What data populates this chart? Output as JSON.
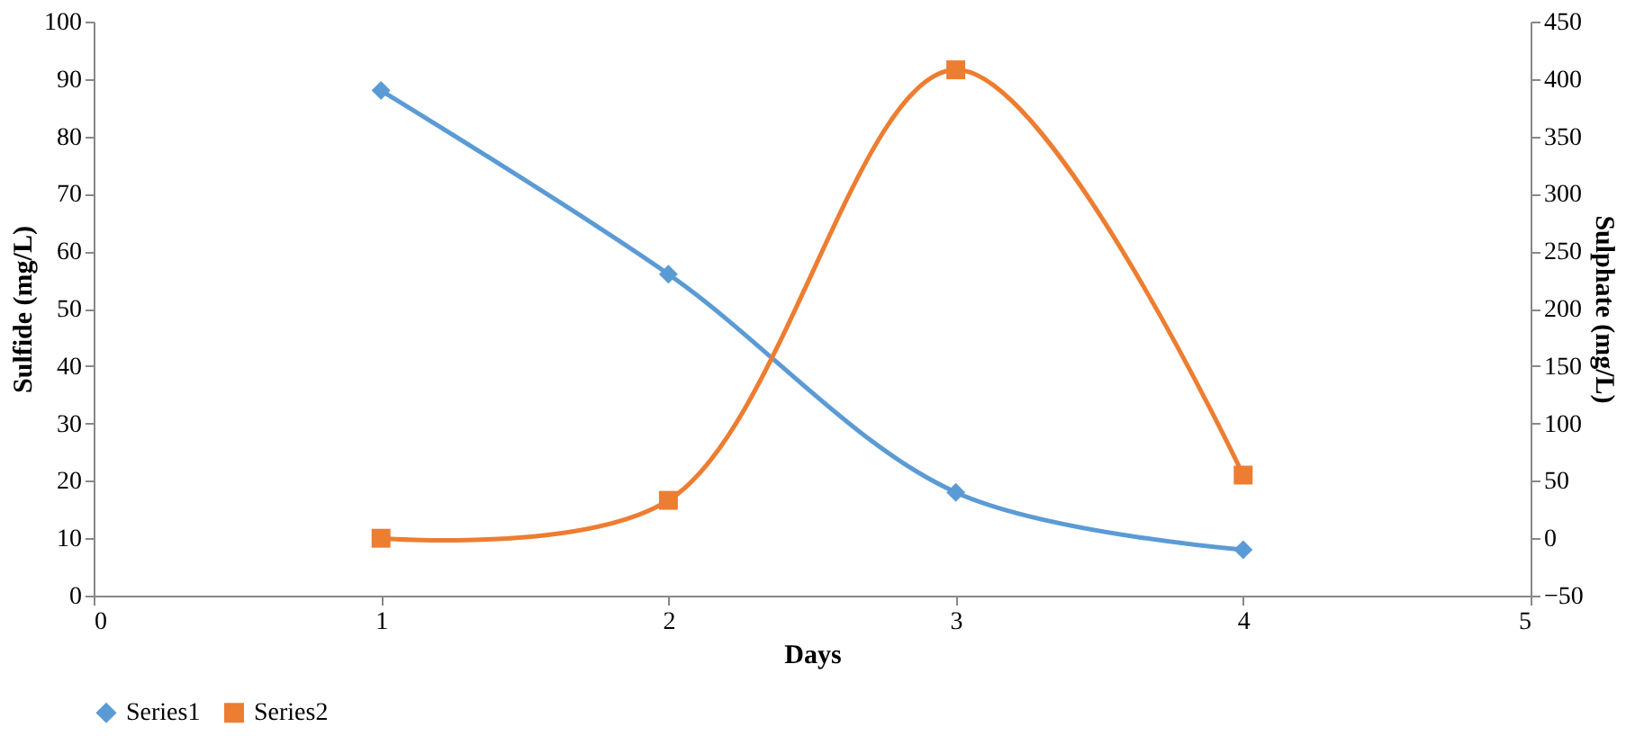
{
  "chart_data": {
    "type": "line",
    "xlabel": "Days",
    "ylabel": "Sulfide (mg/L)",
    "y2label": "Sulphate (mg/L)",
    "x": [
      1,
      2,
      3,
      4
    ],
    "series": [
      {
        "name": "Series1",
        "color": "#5b9bd5",
        "values": [
          88,
          56,
          18,
          8
        ],
        "marker": "diamond"
      },
      {
        "name": "Series2",
        "color": "#ed7d31",
        "values": [
          0,
          33,
          408,
          55
        ],
        "axis": "y2",
        "marker": "square"
      }
    ],
    "xlim": [
      0,
      5
    ],
    "xticks": [
      0,
      1,
      2,
      3,
      4,
      5
    ],
    "ylim": [
      0,
      100
    ],
    "yticks": [
      0,
      10,
      20,
      30,
      40,
      50,
      60,
      70,
      80,
      90,
      100
    ],
    "y2lim": [
      -50,
      450
    ],
    "y2ticks": [
      -50,
      0,
      50,
      100,
      150,
      200,
      250,
      300,
      350,
      400,
      450
    ],
    "grid": false,
    "legend": "bottom",
    "line_style": "solid"
  }
}
